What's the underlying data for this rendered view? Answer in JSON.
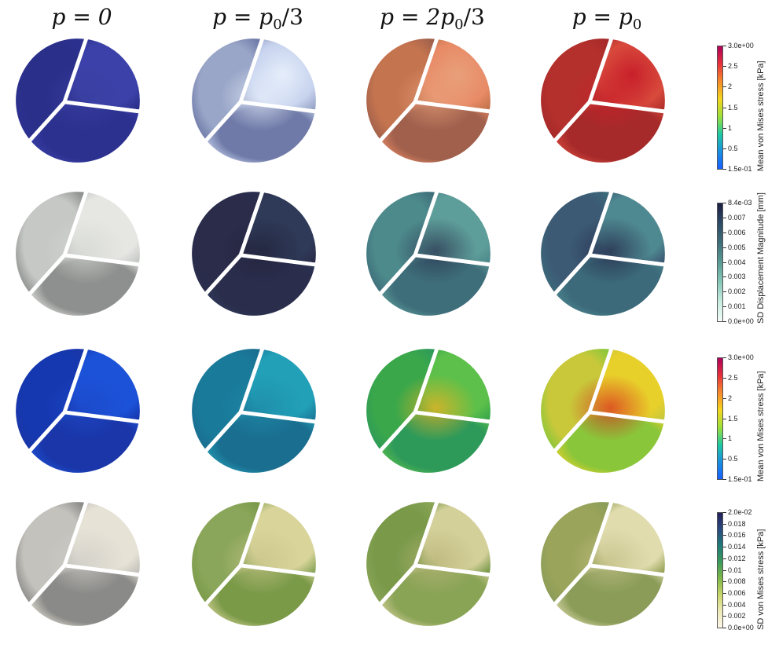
{
  "columns": [
    {
      "lhs": "p",
      "eq": " = ",
      "rhs": "0",
      "sub": "",
      "tail": ""
    },
    {
      "lhs": "p",
      "eq": " = ",
      "rhs": "p",
      "sub": "0",
      "tail": "/3"
    },
    {
      "lhs": "p",
      "eq": " = ",
      "rhs": "2p",
      "sub": "0",
      "tail": "/3"
    },
    {
      "lhs": "p",
      "eq": " = ",
      "rhs": "p",
      "sub": "0",
      "tail": ""
    }
  ],
  "rows": [
    {
      "colorbar": {
        "title": "Mean von Mises stress [kPa]",
        "ticks": [
          "3.0e+00",
          "2.5",
          "2",
          "1.5",
          "1",
          "0.5",
          "1.5e-01"
        ],
        "gradient": [
          "#b0005a",
          "#e8303a",
          "#f58a2a",
          "#f5d51e",
          "#9ee03a",
          "#1fc9a0",
          "#1a8fe0",
          "#1560ff"
        ]
      },
      "cells": [
        {
          "colors": [
            "#2a2f8a",
            "#3b41a8",
            "#2c3190"
          ],
          "center": "#3a3fa0"
        },
        {
          "colors": [
            "#9aa6c8",
            "#c7d3ee",
            "#6f7aa8"
          ],
          "center": "#e6eefb"
        },
        {
          "colors": [
            "#c4744e",
            "#e88a66",
            "#a0604c"
          ],
          "center": "#e8a07a"
        },
        {
          "colors": [
            "#b4302c",
            "#d84a3c",
            "#a62a2a"
          ],
          "center": "#c8202a"
        }
      ]
    },
    {
      "colorbar": {
        "title": "SD Displacement Magnitude [mm]",
        "ticks": [
          "8.4e-03",
          "0.007",
          "0.006",
          "0.005",
          "0.004",
          "0.003",
          "0.002",
          "0.001",
          "0.0e+00"
        ],
        "gradient": [
          "#1c1f45",
          "#2e4a66",
          "#3f6f7a",
          "#5a9a96",
          "#86c7b8",
          "#c8ece0",
          "#f2fbf8"
        ]
      },
      "cells": [
        {
          "colors": [
            "#c6c8c6",
            "#e6e7e3",
            "#8e908f"
          ],
          "center": "#d6d8d4"
        },
        {
          "colors": [
            "#2a2c4a",
            "#2e3a58",
            "#2a2d4c"
          ],
          "center": "#22223a"
        },
        {
          "colors": [
            "#4d8a8c",
            "#5e9e9a",
            "#3e6e7a"
          ],
          "center": "#2a3550"
        },
        {
          "colors": [
            "#3c5a74",
            "#4e8890",
            "#3c6a7a"
          ],
          "center": "#24284a"
        }
      ]
    },
    {
      "colorbar": {
        "title": "Mean von Mises stress [kPa]",
        "ticks": [
          "3.0e+00",
          "2.5",
          "2",
          "1.5",
          "1",
          "0.5",
          "1.5e-01"
        ],
        "gradient": [
          "#b0005a",
          "#e8303a",
          "#f58a2a",
          "#f5d51e",
          "#9ee03a",
          "#1fc9a0",
          "#1a8fe0",
          "#1560ff"
        ]
      },
      "cells": [
        {
          "colors": [
            "#1538b0",
            "#1c52d8",
            "#1a36a8"
          ],
          "center": "#1c48c8"
        },
        {
          "colors": [
            "#1a7a9a",
            "#22a0b8",
            "#1a6e90"
          ],
          "center": "#1e8aa8"
        },
        {
          "colors": [
            "#3aa84a",
            "#5cc04a",
            "#2e9a5a"
          ],
          "center": "#f0b020"
        },
        {
          "colors": [
            "#c8c83a",
            "#e8d02a",
            "#8ac63a"
          ],
          "center": "#d83020"
        }
      ]
    },
    {
      "colorbar": {
        "title": "SD von Mises stress [kPa]",
        "ticks": [
          "2.0e-02",
          "0.018",
          "0.016",
          "0.014",
          "0.012",
          "0.01",
          "0.008",
          "0.006",
          "0.004",
          "0.002",
          "0.0e+00"
        ],
        "gradient": [
          "#23205a",
          "#2a4a80",
          "#1f7a78",
          "#3c9a5a",
          "#80b84a",
          "#c8d66a",
          "#efe9b8",
          "#fbf6e8"
        ]
      },
      "cells": [
        {
          "colors": [
            "#c4c2bc",
            "#e6e2d6",
            "#8a8a88"
          ],
          "center": "#d0cec8"
        },
        {
          "colors": [
            "#8aa65a",
            "#d8d49a",
            "#7a9a48"
          ],
          "center": "#c8c48a"
        },
        {
          "colors": [
            "#7a9a4a",
            "#d4d09a",
            "#8aa456"
          ],
          "center": "#b8b478"
        },
        {
          "colors": [
            "#9aa45a",
            "#e0dcae",
            "#8a9c58"
          ],
          "center": "#c4c088"
        }
      ]
    }
  ]
}
